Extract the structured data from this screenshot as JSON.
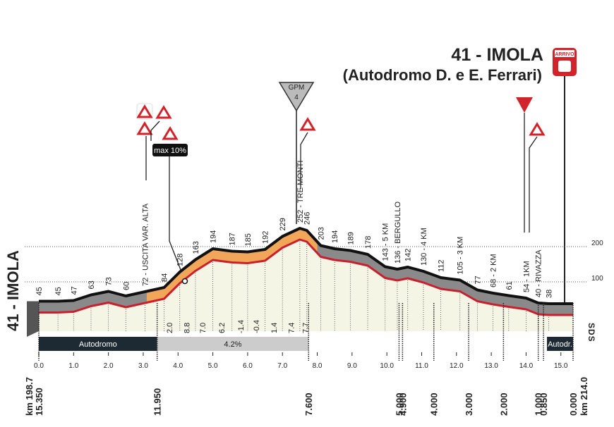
{
  "chart_data": {
    "type": "profile",
    "title": "41 - IMOLA",
    "subtitle": "(Autodromo D. e E. Ferrari)",
    "start_label": "41 - IMOLA",
    "finish_icon": "ARRIVO",
    "gpm": {
      "label": "GPM",
      "category": 4
    },
    "max_gradient_label": "max 10%",
    "logo": "SDS",
    "color": "#c8202e",
    "x": [
      0,
      0.55,
      1.0,
      1.5,
      2.0,
      2.5,
      3.05,
      3.6,
      4.05,
      4.5,
      5.0,
      5.55,
      6.0,
      6.5,
      7.0,
      7.5,
      7.7,
      8.1,
      8.5,
      8.95,
      9.45,
      9.95,
      10.3,
      10.6,
      11.05,
      11.55,
      12.1,
      12.6,
      13.05,
      13.5,
      14.0,
      14.35,
      14.65
    ],
    "values": [
      45,
      45,
      47,
      63,
      73,
      60,
      72,
      84,
      128,
      163,
      194,
      187,
      185,
      192,
      229,
      252,
      246,
      203,
      194,
      189,
      178,
      143,
      136,
      142,
      130,
      112,
      105,
      77,
      68,
      61,
      54,
      40,
      38
    ],
    "value_labels": [
      "45",
      "45",
      "47",
      "63",
      "73",
      "60",
      "72 - USCITA VAR. ALTA",
      "84",
      "128",
      "163",
      "194",
      "187",
      "185",
      "192",
      "229",
      "252 - TRE MONTI",
      "246",
      "203",
      "194",
      "189",
      "178",
      "143 - 5 KM",
      "136 - BERGULLO",
      "142",
      "130 - 4 KM",
      "112",
      "105 - 3 KM",
      "77",
      "68 - 2 KM",
      "61",
      "54 - 1KM",
      "40 - RIVAZZA",
      "38"
    ],
    "xlim": [
      0,
      15.35
    ],
    "xticks": [
      {
        "value": 0,
        "label": "0.0"
      },
      {
        "value": 1,
        "label": "1.0"
      },
      {
        "value": 2,
        "label": "2.0"
      },
      {
        "value": 3,
        "label": "3.0"
      },
      {
        "value": 4,
        "label": "4.0"
      },
      {
        "value": 5,
        "label": "5.0"
      },
      {
        "value": 6,
        "label": "6.0"
      },
      {
        "value": 7,
        "label": "7.0"
      },
      {
        "value": 8,
        "label": "8.0"
      },
      {
        "value": 9,
        "label": "9.0"
      },
      {
        "value": 10,
        "label": "10.0"
      },
      {
        "value": 11,
        "label": "11.0"
      },
      {
        "value": 12,
        "label": "12.0"
      },
      {
        "value": 13,
        "label": "13.0"
      },
      {
        "value": 14,
        "label": "14.0"
      },
      {
        "value": 15,
        "label": "15.0"
      }
    ],
    "ylim": [
      0,
      260
    ],
    "yticks": [
      100,
      200
    ],
    "gradients": [
      {
        "x": 3.75,
        "value": 2.0,
        "label": "2.0"
      },
      {
        "x": 4.25,
        "value": 8.8,
        "label": "8.8"
      },
      {
        "x": 4.7,
        "value": 7.0,
        "label": "7.0"
      },
      {
        "x": 5.25,
        "value": 6.2,
        "label": "6.2"
      },
      {
        "x": 5.8,
        "value": -1.4,
        "label": "-1.4"
      },
      {
        "x": 6.25,
        "value": -0.4,
        "label": "-0.4"
      },
      {
        "x": 6.75,
        "value": 1.4,
        "label": "1.4"
      },
      {
        "x": 7.25,
        "value": 7.4,
        "label": "7.4"
      },
      {
        "x": 7.65,
        "value": 7.7,
        "label": "7.7"
      }
    ],
    "bands": [
      {
        "label": "Autodromo",
        "from": 0,
        "to": 3.4
      },
      {
        "label": "4.2%",
        "from": 3.4,
        "to": 7.75
      },
      {
        "label": "Autodr.",
        "from": 14.6,
        "to": 15.35
      }
    ],
    "distance_marks": [
      {
        "value": 15.35,
        "label": "15.350"
      },
      {
        "value": 11.95,
        "label": "11.950"
      },
      {
        "value": 7.6,
        "label": "7.600"
      },
      {
        "value": 5.0,
        "label": "5.000"
      },
      {
        "value": 4.9,
        "label": "4.900"
      },
      {
        "value": 4.0,
        "label": "4.000"
      },
      {
        "value": 3.0,
        "label": "3.000"
      },
      {
        "value": 2.0,
        "label": "2.000"
      },
      {
        "value": 1.0,
        "label": "1.000"
      },
      {
        "value": 0.85,
        "label": "0.850"
      },
      {
        "value": 0.0,
        "label": "0.000"
      }
    ],
    "km_start": "km 198.7",
    "km_end": "km 214.0"
  }
}
